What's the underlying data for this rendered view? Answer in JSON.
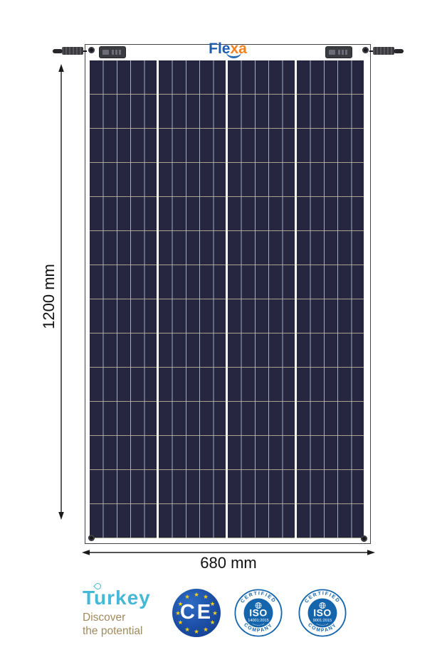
{
  "product": {
    "brand": {
      "name_blue_part": "Fle",
      "name_orange_part": "xa"
    },
    "panel": {
      "column_groups": 4,
      "columns_per_group": 5,
      "rows": 14
    }
  },
  "dimensions": {
    "height_label": "1200 mm",
    "width_label": "680 mm"
  },
  "footer": {
    "turkey": {
      "name": "Turkey",
      "slogan_line1": "Discover",
      "slogan_line2": "the potential"
    },
    "ce": {
      "text": "CE",
      "star": "★",
      "star_count": 12
    },
    "iso_badges": [
      {
        "arc_top": "CERTIFIED",
        "arc_bottom": "COMPANY",
        "name": "ISO",
        "standard": "14001:2015"
      },
      {
        "arc_top": "CERTIFIED",
        "arc_bottom": "COMPANY",
        "name": "ISO",
        "standard": "9001:2015"
      }
    ]
  },
  "colors": {
    "cell_navy": "#262640",
    "cell_line_vertical": "#bac4d8",
    "cell_line_horizontal": "#a6a289",
    "brand_blue": "#1e5dad",
    "brand_orange": "#f5821f",
    "turkey_teal": "#45b8d6",
    "turkey_tan": "#a18a5e",
    "eu_blue": "#1b4da3",
    "star_yellow": "#f7d117",
    "iso_blue": "#1565ad",
    "dimension_text": "#111111"
  }
}
